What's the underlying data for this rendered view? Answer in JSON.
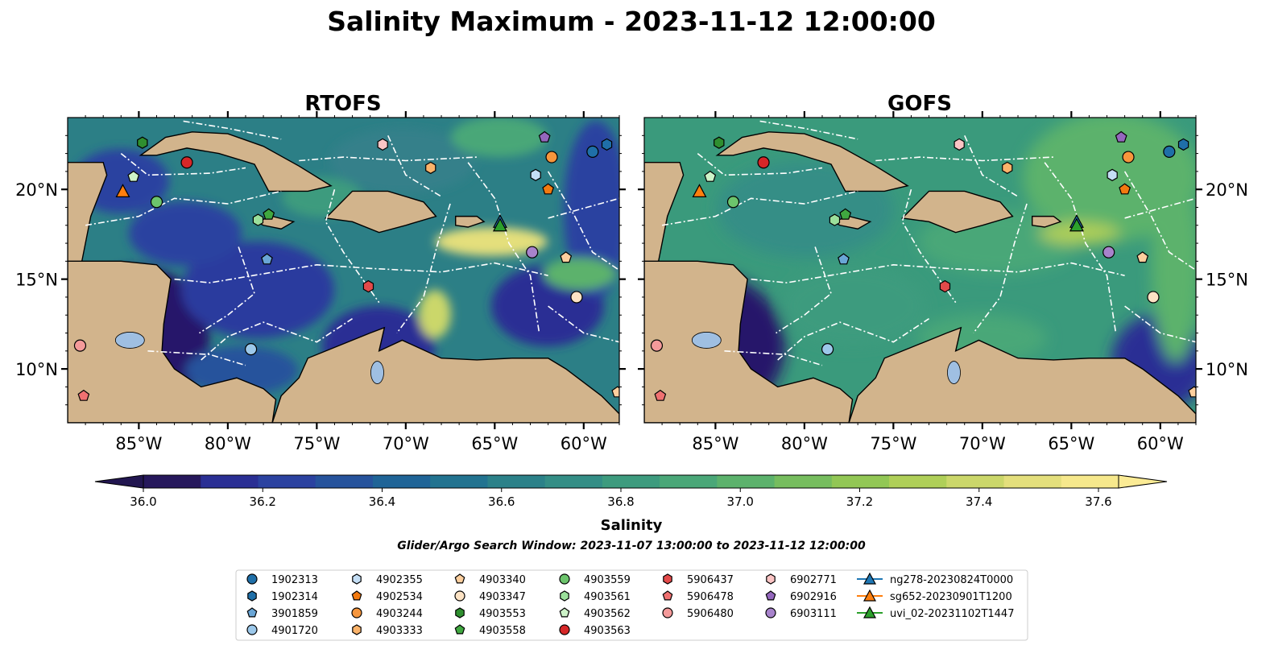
{
  "figure": {
    "title": "Salinity Maximum - 2023-11-12 12:00:00",
    "subtitle": "Glider/Argo Search Window: 2023-11-07 13:00:00 to 2023-11-12 12:00:00"
  },
  "chart_data": [
    {
      "type": "heatmap",
      "title": "RTOFS",
      "xlim": [
        -89,
        -58
      ],
      "ylim": [
        7,
        24
      ],
      "xticks": [
        "85°W",
        "80°W",
        "75°W",
        "70°W",
        "65°W",
        "60°W"
      ],
      "yticks": [
        "10°N",
        "15°N",
        "20°N"
      ],
      "ytick_side": "left",
      "colors": {
        "ocean": "#2c7f86",
        "land": "#d2b48c"
      }
    },
    {
      "type": "heatmap",
      "title": "GOFS",
      "xlim": [
        -89,
        -58
      ],
      "ylim": [
        7,
        24
      ],
      "xticks": [
        "85°W",
        "80°W",
        "75°W",
        "70°W",
        "65°W",
        "60°W"
      ],
      "yticks": [
        "10°N",
        "15°N",
        "20°N"
      ],
      "ytick_side": "right",
      "colors": {
        "ocean": "#3a9a7c",
        "land": "#d2b48c"
      }
    }
  ],
  "colorbar": {
    "label": "Salinity",
    "min": 35.95,
    "max": 37.65,
    "ticks": [
      "36.0",
      "36.2",
      "36.4",
      "36.6",
      "36.8",
      "37.0",
      "37.2",
      "37.4",
      "37.6"
    ],
    "colors": [
      "#26185c",
      "#2a2f94",
      "#2b42a0",
      "#26539c",
      "#1f6497",
      "#227390",
      "#2b8189",
      "#348e86",
      "#3d9b7e",
      "#4aa778",
      "#5cb26c",
      "#76bd5e",
      "#92c755",
      "#afcf58",
      "#cbd76a",
      "#e4df7c",
      "#f6e88c"
    ],
    "extend_low": "#221650",
    "extend_high": "#fbeb95"
  },
  "legend": {
    "entries": [
      {
        "label": "1902313",
        "marker": "circle",
        "color": "#1f6fa8"
      },
      {
        "label": "1902314",
        "marker": "hexagon",
        "color": "#1f6fa8"
      },
      {
        "label": "3901859",
        "marker": "pentagon",
        "color": "#6aa6d6"
      },
      {
        "label": "4901720",
        "marker": "circle",
        "color": "#9cc8ea"
      },
      {
        "label": "4902355",
        "marker": "hexagon",
        "color": "#c4def5"
      },
      {
        "label": "4902534",
        "marker": "pentagon",
        "color": "#f27a10"
      },
      {
        "label": "4903244",
        "marker": "circle",
        "color": "#f7963c"
      },
      {
        "label": "4903333",
        "marker": "hexagon",
        "color": "#fbb36a"
      },
      {
        "label": "4903340",
        "marker": "pentagon",
        "color": "#fdcf9e"
      },
      {
        "label": "4903347",
        "marker": "circle",
        "color": "#fde3c4"
      },
      {
        "label": "4903553",
        "marker": "hexagon",
        "color": "#2f8f2f"
      },
      {
        "label": "4903558",
        "marker": "pentagon",
        "color": "#40a840"
      },
      {
        "label": "4903559",
        "marker": "circle",
        "color": "#6cc46c"
      },
      {
        "label": "4903561",
        "marker": "hexagon",
        "color": "#9be09b"
      },
      {
        "label": "4903562",
        "marker": "pentagon",
        "color": "#cdf3c8"
      },
      {
        "label": "4903563",
        "marker": "circle",
        "color": "#d62728"
      },
      {
        "label": "5906437",
        "marker": "hexagon",
        "color": "#e34a4a"
      },
      {
        "label": "5906478",
        "marker": "pentagon",
        "color": "#f07171"
      },
      {
        "label": "5906480",
        "marker": "circle",
        "color": "#f49a9a"
      },
      {
        "label": "6902771",
        "marker": "hexagon",
        "color": "#fbc4c4"
      },
      {
        "label": "6902916",
        "marker": "pentagon",
        "color": "#9467bd"
      },
      {
        "label": "6903111",
        "marker": "circle",
        "color": "#a883cc"
      },
      {
        "label": "ng278-20230824T0000",
        "marker": "triangle-line",
        "color": "#1f77b4"
      },
      {
        "label": "sg652-20230901T1200",
        "marker": "triangle-line",
        "color": "#ff7f0e"
      },
      {
        "label": "uvi_02-20231102T1447",
        "marker": "triangle-line",
        "color": "#2ca02c"
      }
    ]
  },
  "observations": [
    {
      "id": "1902313",
      "lon": -59.5,
      "lat": 22.1
    },
    {
      "id": "1902314",
      "lon": -58.7,
      "lat": 22.5
    },
    {
      "id": "3901859",
      "lon": -77.8,
      "lat": 16.1
    },
    {
      "id": "4901720",
      "lon": -78.7,
      "lat": 11.1
    },
    {
      "id": "4902355",
      "lon": -62.7,
      "lat": 20.8
    },
    {
      "id": "4902534",
      "lon": -62.0,
      "lat": 20.0
    },
    {
      "id": "4903244",
      "lon": -61.8,
      "lat": 21.8
    },
    {
      "id": "4903333",
      "lon": -68.6,
      "lat": 21.2
    },
    {
      "id": "4903340",
      "lon": -61.0,
      "lat": 16.2
    },
    {
      "id": "4903347",
      "lon": -60.4,
      "lat": 14.0
    },
    {
      "id": "4903553",
      "lon": -84.8,
      "lat": 22.6
    },
    {
      "id": "4903558",
      "lon": -77.7,
      "lat": 18.6
    },
    {
      "id": "4903559",
      "lon": -84.0,
      "lat": 19.3
    },
    {
      "id": "4903561",
      "lon": -78.3,
      "lat": 18.3
    },
    {
      "id": "4903562",
      "lon": -85.3,
      "lat": 20.7
    },
    {
      "id": "4903563",
      "lon": -82.3,
      "lat": 21.5
    },
    {
      "id": "5906437",
      "lon": -72.1,
      "lat": 14.6
    },
    {
      "id": "5906478",
      "lon": -88.1,
      "lat": 8.5
    },
    {
      "id": "5906480",
      "lon": -88.3,
      "lat": 11.3
    },
    {
      "id": "6902771",
      "lon": -71.3,
      "lat": 22.5
    },
    {
      "id": "6902916",
      "lon": -62.2,
      "lat": 22.9
    },
    {
      "id": "6903111",
      "lon": -62.9,
      "lat": 16.5
    },
    {
      "id": "ng278-20230824T0000",
      "lon": -64.7,
      "lat": 18.2
    },
    {
      "id": "sg652-20230901T1200",
      "lon": -85.9,
      "lat": 19.9
    },
    {
      "id": "uvi_02-20231102T1447",
      "lon": -64.7,
      "lat": 18.0
    },
    {
      "id": "4903340",
      "lon": -58.1,
      "lat": 8.7
    }
  ]
}
